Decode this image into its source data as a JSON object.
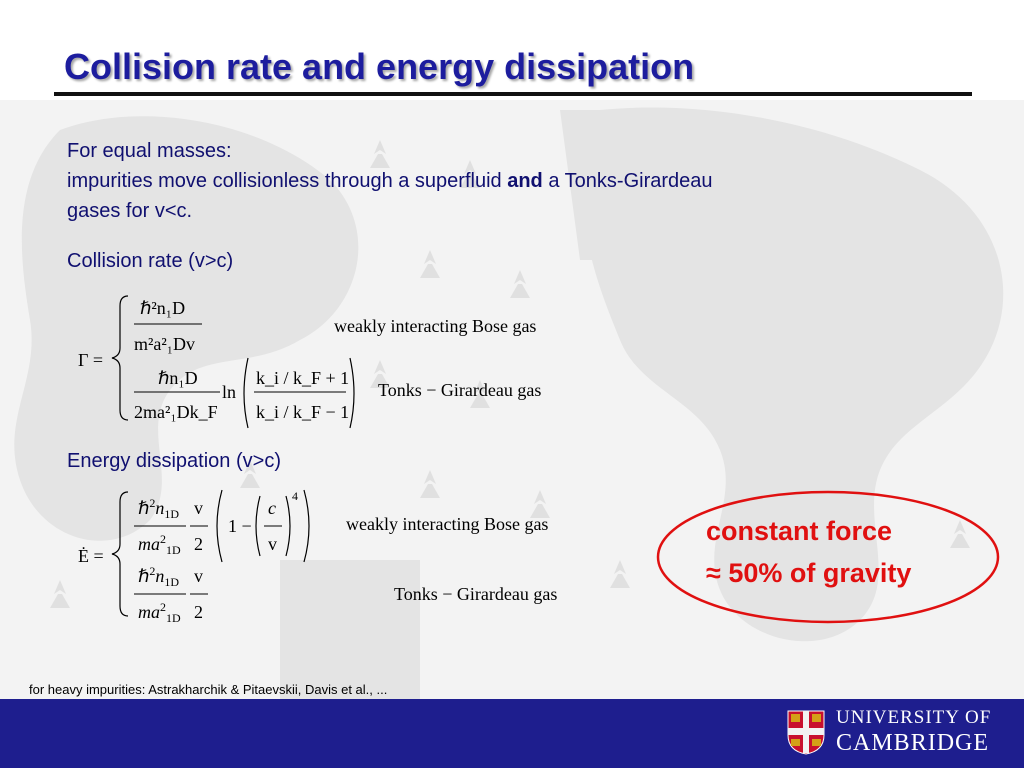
{
  "slide": {
    "title": "Collision rate and energy dissipation",
    "line1": "For equal masses:",
    "line2_pre": "impurities move collisionless through a superfluid ",
    "line2_bold": "and",
    "line2_post": " a Tonks-Girardeau",
    "line3": "gases for v<c.",
    "collision_heading": "Collision rate (v>c)",
    "energy_heading": "Energy dissipation (v>c)",
    "footnote": "for heavy impurities: Astrakharchik & Pitaevskii, Davis et al., ..."
  },
  "formula_gamma": {
    "lhs": "Γ =",
    "case1_num": "ℏ²n₁D",
    "case1_den": "m²a²₁Dv",
    "case1_label": "weakly interacting Bose gas",
    "case2_num": "ℏn₁D",
    "case2_den": "2ma²₁Dk_F",
    "case2_log": "ln",
    "case2_lognum": "k_i / k_F + 1",
    "case2_logden": "k_i / k_F − 1",
    "case2_label": "Tonks − Girardeau gas"
  },
  "formula_energy": {
    "lhs": "Ė =",
    "case1_label": "weakly interacting Bose gas",
    "case2_label": "Tonks − Girardeau gas"
  },
  "callout": {
    "line1": "constant force",
    "line2": "≈ 50% of gravity",
    "accent": "#e01010"
  },
  "footer": {
    "line1": "UNIVERSITY OF",
    "line2": "CAMBRIDGE",
    "bg": "#1e1e8e"
  }
}
